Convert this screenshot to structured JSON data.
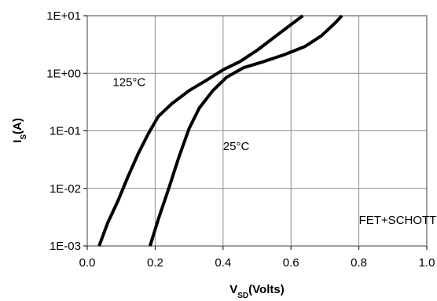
{
  "chart_data": {
    "type": "line",
    "xlabel_main": "V",
    "xlabel_sub": "SD",
    "xlabel_rest": "(Volts)",
    "ylabel_main": "I",
    "ylabel_sub": "S",
    "ylabel_rest": "(A)",
    "xlim": [
      0.0,
      1.0
    ],
    "ylim": [
      0.001,
      10
    ],
    "yscale": "log",
    "grid": true,
    "x_ticks": [
      {
        "value": 0.0,
        "label": "0.0"
      },
      {
        "value": 0.2,
        "label": "0.2"
      },
      {
        "value": 0.4,
        "label": "0.4"
      },
      {
        "value": 0.6,
        "label": "0.6"
      },
      {
        "value": 0.8,
        "label": "0.8"
      },
      {
        "value": 1.0,
        "label": "1.0"
      }
    ],
    "y_ticks": [
      {
        "value": 10,
        "label": "1E+01"
      },
      {
        "value": 1,
        "label": "1E+00"
      },
      {
        "value": 0.1,
        "label": "1E-01"
      },
      {
        "value": 0.01,
        "label": "1E-02"
      },
      {
        "value": 0.001,
        "label": "1E-03"
      }
    ],
    "series": [
      {
        "name": "125°C",
        "color": "#000000",
        "points": [
          [
            0.035,
            0.001
          ],
          [
            0.06,
            0.0025
          ],
          [
            0.09,
            0.006
          ],
          [
            0.12,
            0.016
          ],
          [
            0.15,
            0.04
          ],
          [
            0.18,
            0.09
          ],
          [
            0.21,
            0.18
          ],
          [
            0.25,
            0.3
          ],
          [
            0.3,
            0.5
          ],
          [
            0.35,
            0.75
          ],
          [
            0.4,
            1.15
          ],
          [
            0.45,
            1.6
          ],
          [
            0.5,
            2.5
          ],
          [
            0.55,
            4.2
          ],
          [
            0.6,
            7.0
          ],
          [
            0.635,
            10.0
          ]
        ]
      },
      {
        "name": "25°C",
        "color": "#000000",
        "points": [
          [
            0.185,
            0.001
          ],
          [
            0.21,
            0.003
          ],
          [
            0.24,
            0.01
          ],
          [
            0.27,
            0.035
          ],
          [
            0.3,
            0.11
          ],
          [
            0.33,
            0.25
          ],
          [
            0.37,
            0.5
          ],
          [
            0.41,
            0.85
          ],
          [
            0.46,
            1.25
          ],
          [
            0.52,
            1.6
          ],
          [
            0.58,
            2.1
          ],
          [
            0.64,
            2.9
          ],
          [
            0.69,
            4.5
          ],
          [
            0.73,
            7.5
          ],
          [
            0.75,
            10.0
          ]
        ]
      }
    ],
    "annotations": [
      {
        "text": "125°C",
        "x": 0.075,
        "y": 0.6
      },
      {
        "text": "25°C",
        "x": 0.4,
        "y": 0.046
      },
      {
        "text": "FET+SCHOTTKY",
        "x": 0.8,
        "y": 0.0024
      }
    ]
  }
}
